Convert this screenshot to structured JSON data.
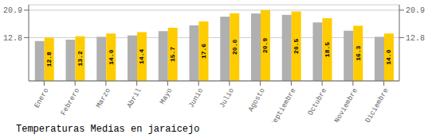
{
  "chart_data": {
    "type": "bar",
    "title": "Temperaturas Medias en jaraicejo",
    "categories": [
      "Enero",
      "Febrero",
      "Marzo",
      "Abril",
      "Mayo",
      "Junio",
      "Julio",
      "Agosto",
      "Septiembre",
      "Octubre",
      "Noviembre",
      "Diciembre"
    ],
    "series": [
      {
        "color": "#B0B0B0",
        "values": [
          11.8,
          12.2,
          13.0,
          13.4,
          14.7,
          16.4,
          19.0,
          19.9,
          19.5,
          17.3,
          14.8,
          13.0
        ]
      },
      {
        "color": "#FFCC00",
        "values": [
          12.8,
          13.2,
          14.0,
          14.4,
          15.7,
          17.6,
          20.0,
          20.9,
          20.5,
          18.5,
          16.3,
          14.0
        ],
        "data_labels": true,
        "value_labels": [
          "12.8",
          "13.2",
          "14.0",
          "14.4",
          "15.7",
          "17.6",
          "20.0",
          "20.9",
          "20.5",
          "18.5",
          "16.3",
          "14.0"
        ]
      }
    ],
    "ylim": [
      0,
      22.5
    ],
    "yticks": [
      12.8,
      20.9
    ],
    "y2lim": [
      0,
      22.5
    ],
    "y2ticks": [
      12.8,
      20.9
    ],
    "grid": true
  }
}
